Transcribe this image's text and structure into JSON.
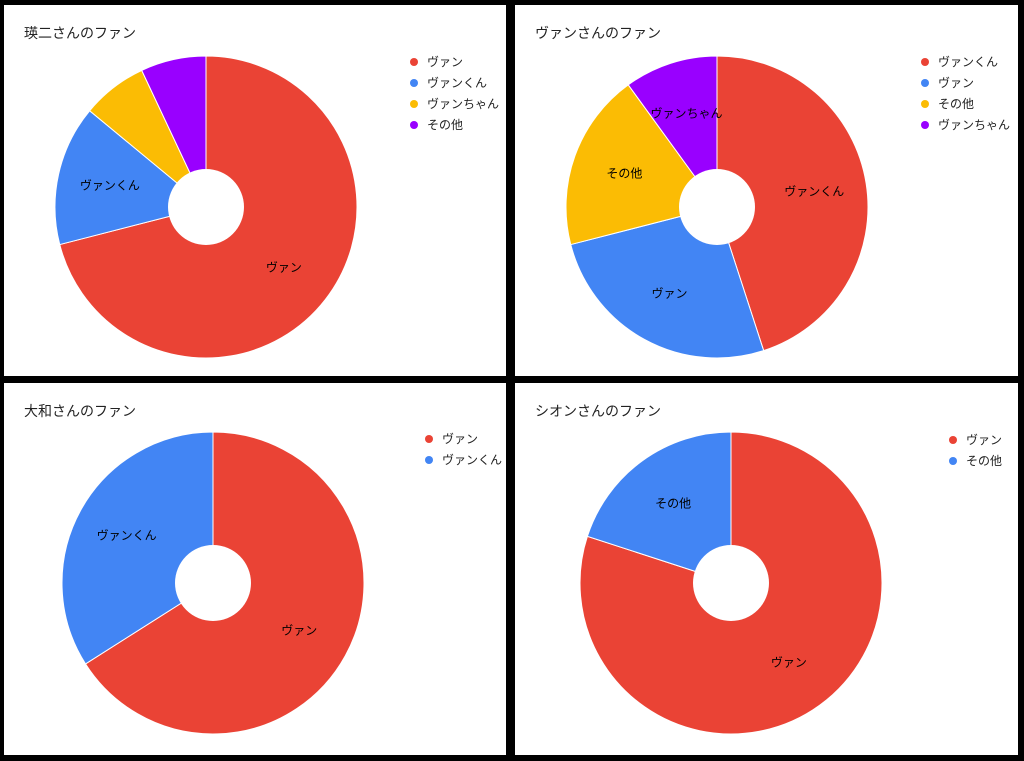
{
  "chart_data": [
    {
      "type": "pie",
      "title": "瑛二さんのファン",
      "categories": [
        "ヴァン",
        "ヴァンくん",
        "ヴァンちゃん",
        "その他"
      ],
      "values": [
        71,
        15,
        7,
        7
      ],
      "colors": [
        "#ea4335",
        "#4285f4",
        "#fbbc04",
        "#9900ff"
      ],
      "slice_labels": [
        "ヴァン",
        "ヴァンくん",
        "",
        ""
      ],
      "legend": "right",
      "donut": true
    },
    {
      "type": "pie",
      "title": "ヴァンさんのファン",
      "categories": [
        "ヴァンくん",
        "ヴァン",
        "その他",
        "ヴァンちゃん"
      ],
      "values": [
        45,
        26,
        19,
        10
      ],
      "colors": [
        "#ea4335",
        "#4285f4",
        "#fbbc04",
        "#9900ff"
      ],
      "slice_labels": [
        "ヴァンくん",
        "ヴァン",
        "その他",
        "ヴァンちゃん"
      ],
      "legend": "right",
      "donut": true
    },
    {
      "type": "pie",
      "title": "大和さんのファン",
      "categories": [
        "ヴァン",
        "ヴァンくん"
      ],
      "values": [
        66,
        34
      ],
      "colors": [
        "#ea4335",
        "#4285f4"
      ],
      "slice_labels": [
        "ヴァン",
        "ヴァンくん"
      ],
      "legend": "right",
      "donut": true
    },
    {
      "type": "pie",
      "title": "シオンさんのファン",
      "categories": [
        "ヴァン",
        "その他"
      ],
      "values": [
        80,
        20
      ],
      "colors": [
        "#ea4335",
        "#4285f4"
      ],
      "slice_labels": [
        "ヴァン",
        "その他"
      ],
      "legend": "right",
      "donut": true
    }
  ]
}
